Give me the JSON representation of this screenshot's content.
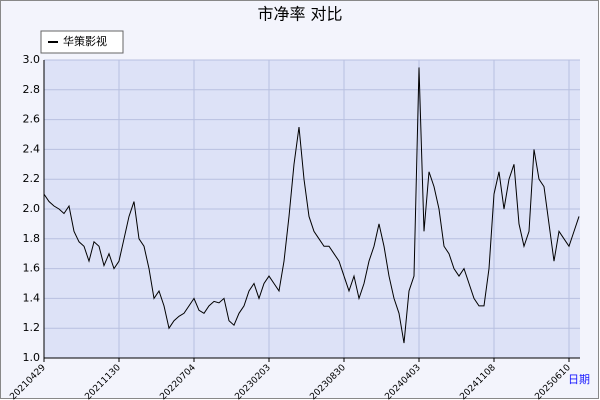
{
  "chart_data": {
    "type": "line",
    "title": "市净率  对比",
    "x_label": "日期",
    "categories": [
      "20210429",
      null,
      null,
      null,
      null,
      null,
      null,
      null,
      null,
      null,
      null,
      null,
      null,
      null,
      null,
      "20211130",
      null,
      null,
      null,
      null,
      null,
      null,
      null,
      null,
      null,
      null,
      null,
      null,
      null,
      null,
      "20220704",
      null,
      null,
      null,
      null,
      null,
      null,
      null,
      null,
      null,
      null,
      null,
      null,
      null,
      null,
      "20230203",
      null,
      null,
      null,
      null,
      null,
      null,
      null,
      null,
      null,
      null,
      null,
      null,
      null,
      null,
      "20230830",
      null,
      null,
      null,
      null,
      null,
      null,
      null,
      null,
      null,
      null,
      null,
      null,
      null,
      null,
      "20240403",
      null,
      null,
      null,
      null,
      null,
      null,
      null,
      null,
      null,
      null,
      null,
      null,
      null,
      null,
      "20241108",
      null,
      null,
      null,
      null,
      null,
      null,
      null,
      null,
      null,
      null,
      null,
      null,
      null,
      null,
      "20250610",
      null,
      null
    ],
    "series": [
      {
        "name": "华策影视",
        "color": "#000000",
        "values": [
          2.1,
          2.05,
          2.02,
          2.0,
          1.97,
          2.02,
          1.85,
          1.78,
          1.75,
          1.65,
          1.78,
          1.75,
          1.62,
          1.7,
          1.6,
          1.65,
          1.8,
          1.95,
          2.05,
          1.8,
          1.75,
          1.6,
          1.4,
          1.45,
          1.35,
          1.2,
          1.25,
          1.28,
          1.3,
          1.35,
          1.4,
          1.32,
          1.3,
          1.35,
          1.38,
          1.37,
          1.4,
          1.25,
          1.22,
          1.3,
          1.35,
          1.45,
          1.5,
          1.4,
          1.5,
          1.55,
          1.5,
          1.45,
          1.65,
          1.95,
          2.3,
          2.55,
          2.2,
          1.95,
          1.85,
          1.8,
          1.75,
          1.75,
          1.7,
          1.65,
          1.55,
          1.45,
          1.55,
          1.4,
          1.5,
          1.65,
          1.75,
          1.9,
          1.75,
          1.55,
          1.4,
          1.3,
          1.1,
          1.45,
          1.55,
          2.95,
          1.85,
          2.25,
          2.15,
          2.0,
          1.75,
          1.7,
          1.6,
          1.55,
          1.6,
          1.5,
          1.4,
          1.35,
          1.35,
          1.6,
          2.1,
          2.25,
          2.0,
          2.2,
          2.3,
          1.9,
          1.75,
          1.85,
          2.4,
          2.2,
          2.15,
          1.9,
          1.65,
          1.85,
          1.8,
          1.75,
          1.85,
          1.95
        ]
      }
    ],
    "ylim": [
      1,
      3
    ],
    "yticks": [
      {
        "value": 1,
        "label": "1.0"
      },
      1.2,
      1.4,
      1.6,
      1.8,
      {
        "value": 2,
        "label": "2.0"
      },
      2.2,
      2.4,
      2.6,
      2.8,
      {
        "value": 3,
        "label": "3.0"
      }
    ],
    "grid": true
  }
}
